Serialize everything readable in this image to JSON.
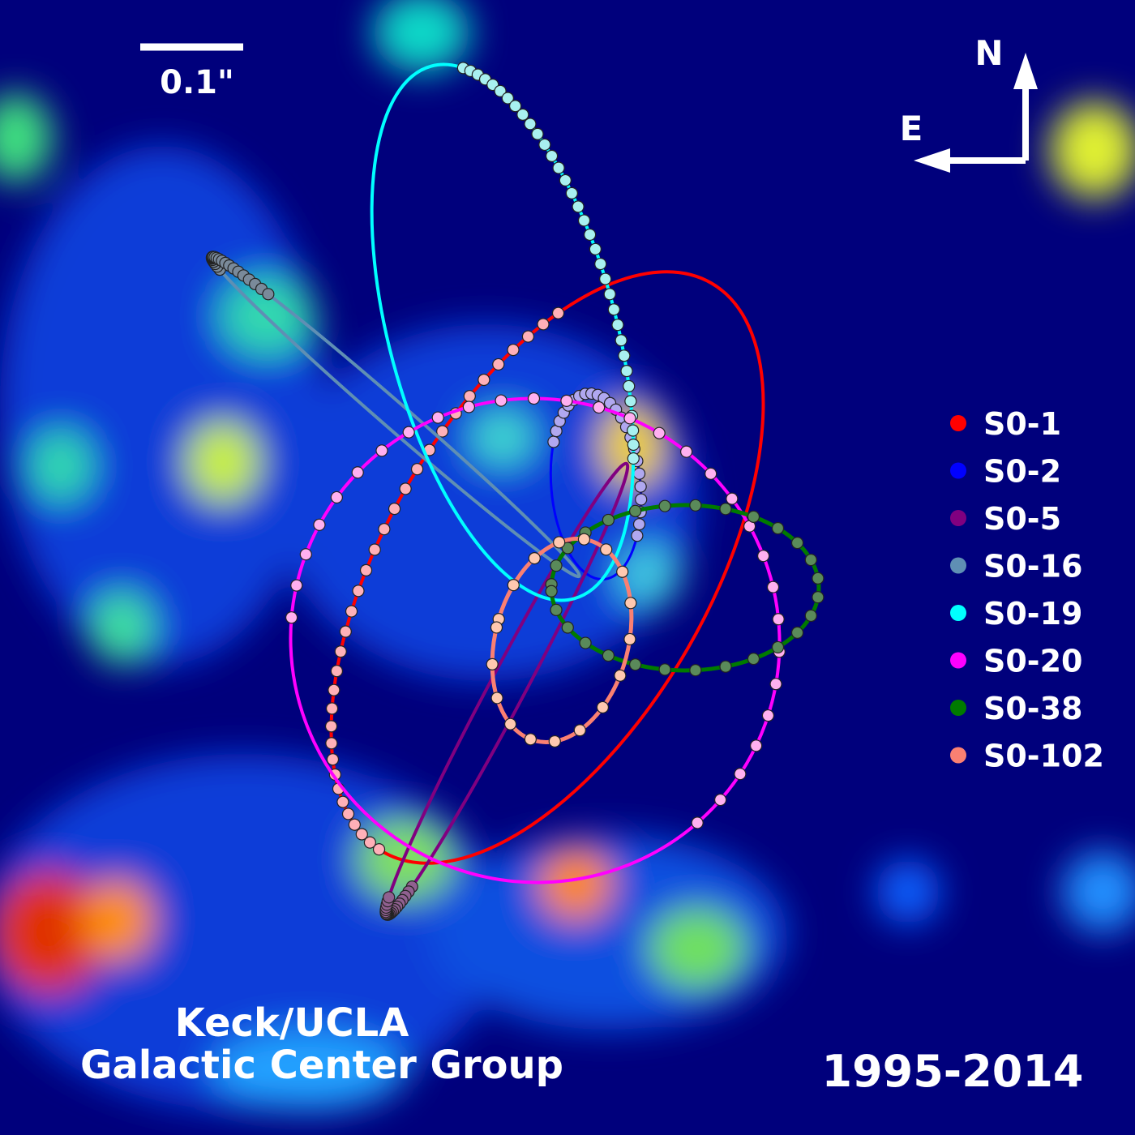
{
  "scale_bar": {
    "label": "0.1\""
  },
  "compass": {
    "north": "N",
    "east": "E"
  },
  "legend": [
    {
      "name": "S0-1",
      "color": "#ff0000"
    },
    {
      "name": "S0-2",
      "color": "#0000ff"
    },
    {
      "name": "S0-5",
      "color": "#800080"
    },
    {
      "name": "S0-16",
      "color": "#5f8fb4"
    },
    {
      "name": "S0-19",
      "color": "#00ffff"
    },
    {
      "name": "S0-20",
      "color": "#ff00ff"
    },
    {
      "name": "S0-38",
      "color": "#007a00"
    },
    {
      "name": "S0-102",
      "color": "#fa8072"
    }
  ],
  "credit": [
    "Keck/UCLA",
    "Galactic Center Group"
  ],
  "date_range": "1995-2014"
}
